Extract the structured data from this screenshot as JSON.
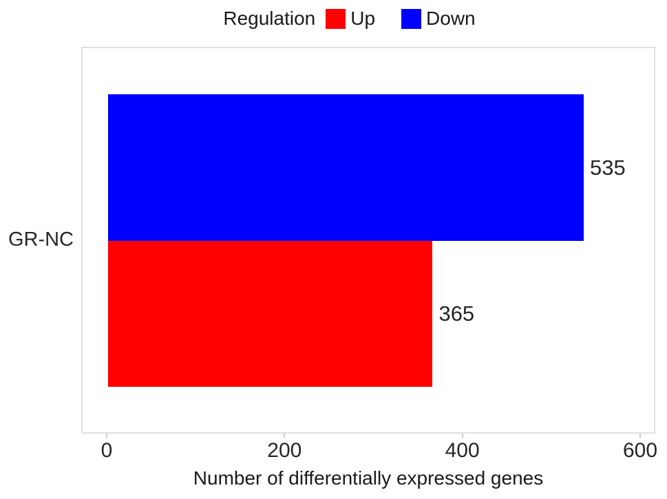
{
  "chart_data": {
    "type": "bar",
    "orientation": "horizontal",
    "xlabel": "Number of differentially expressed genes",
    "ylabel": "",
    "categories": [
      "GR-NC"
    ],
    "series": [
      {
        "name": "Up",
        "color": "#ff0000",
        "values": [
          365
        ]
      },
      {
        "name": "Down",
        "color": "#0000ff",
        "values": [
          535
        ]
      }
    ],
    "x_ticks": [
      0,
      200,
      400,
      600
    ],
    "xlim": [
      0,
      600
    ],
    "grid": false,
    "legend": {
      "title": "Regulation",
      "position": "top",
      "items": [
        {
          "label": "Up",
          "color": "#ff0000"
        },
        {
          "label": "Down",
          "color": "#0000ff"
        }
      ]
    }
  },
  "colors": {
    "panel_border": "#e0e0e0",
    "tick": "#c9c9c9",
    "text": "#1a1a1a"
  }
}
